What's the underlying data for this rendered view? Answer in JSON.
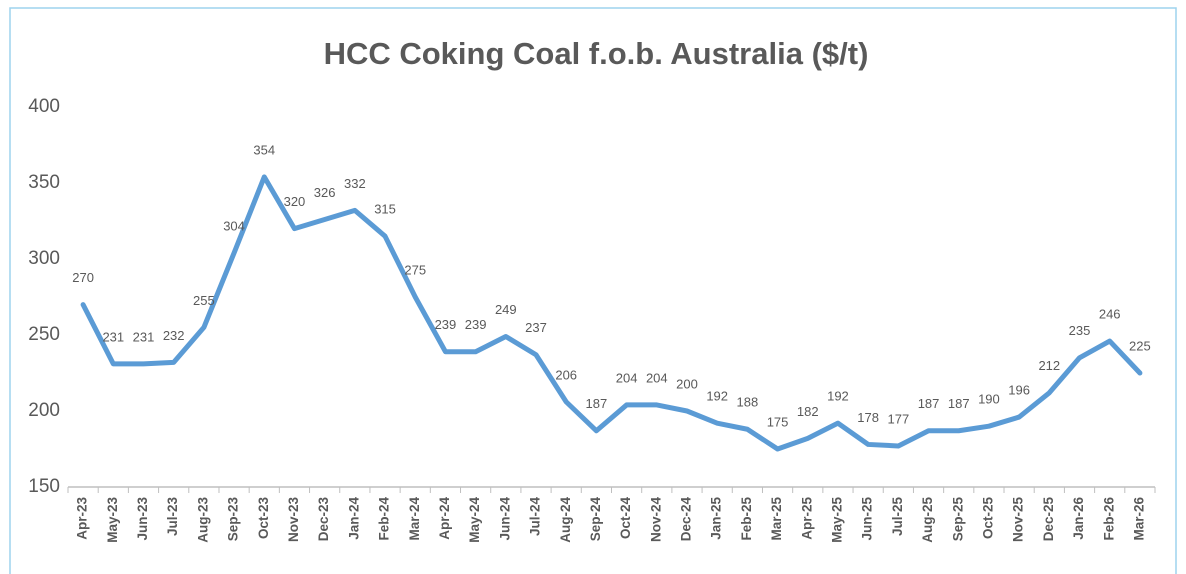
{
  "chart_data": {
    "type": "line",
    "title": "HCC Coking Coal f.o.b. Australia ($/t)",
    "categories": [
      "Apr-23",
      "May-23",
      "Jun-23",
      "Jul-23",
      "Aug-23",
      "Sep-23",
      "Oct-23",
      "Nov-23",
      "Dec-23",
      "Jan-24",
      "Feb-24",
      "Mar-24",
      "Apr-24",
      "May-24",
      "Jun-24",
      "Jul-24",
      "Aug-24",
      "Sep-24",
      "Oct-24",
      "Nov-24",
      "Dec-24",
      "Jan-25",
      "Feb-25",
      "Mar-25",
      "Apr-25",
      "May-25",
      "Jun-25",
      "Jul-25",
      "Aug-25",
      "Sep-25",
      "Oct-25",
      "Nov-25",
      "Dec-25",
      "Jan-26",
      "Feb-26",
      "Mar-26"
    ],
    "values": [
      270,
      231,
      231,
      232,
      255,
      304,
      354,
      320,
      326,
      332,
      315,
      275,
      239,
      239,
      249,
      237,
      206,
      187,
      204,
      204,
      200,
      192,
      188,
      175,
      182,
      192,
      178,
      177,
      187,
      187,
      190,
      196,
      212,
      235,
      246,
      225
    ],
    "color": "#5b9bd5",
    "ylim": [
      150,
      400
    ],
    "yticks": [
      150,
      200,
      250,
      300,
      350,
      400
    ],
    "grid": false
  }
}
